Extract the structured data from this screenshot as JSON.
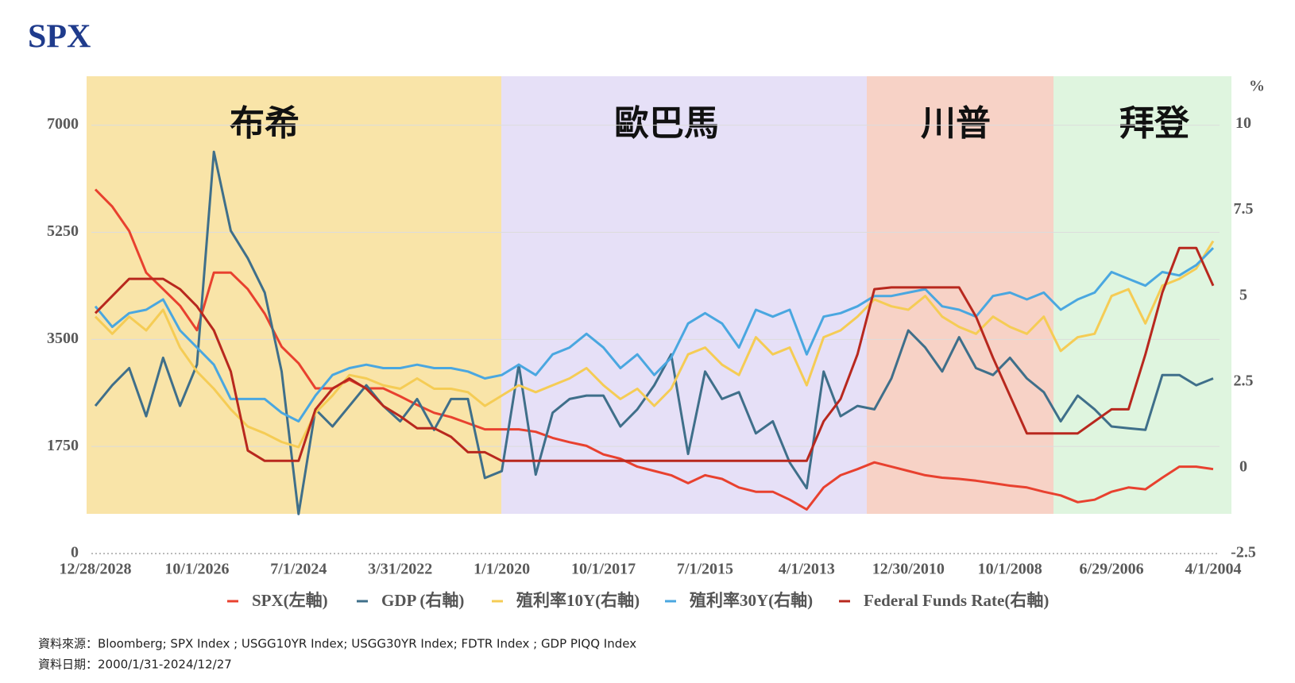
{
  "chart_data": {
    "type": "line",
    "logo": "SPX",
    "y2_label": "%",
    "periods": [
      {
        "label": "布希",
        "color": "#f9e4a8"
      },
      {
        "label": "歐巴馬",
        "color": "#e6e0f7"
      },
      {
        "label": "川普",
        "color": "#f7d2c6"
      },
      {
        "label": "拜登",
        "color": "#dff5df"
      }
    ],
    "categories": [
      "12/28/2028",
      null,
      null,
      null,
      null,
      null,
      "10/1/2026",
      null,
      null,
      null,
      null,
      null,
      "7/1/2024",
      null,
      null,
      null,
      null,
      null,
      "3/31/2022",
      null,
      null,
      null,
      null,
      null,
      "1/1/2020",
      null,
      null,
      null,
      null,
      null,
      "10/1/2017",
      null,
      null,
      null,
      null,
      null,
      "7/1/2015",
      null,
      null,
      null,
      null,
      null,
      "4/1/2013",
      null,
      null,
      null,
      null,
      null,
      "12/30/2010",
      null,
      null,
      null,
      null,
      null,
      "10/1/2008",
      null,
      null,
      null,
      null,
      null,
      "6/29/2006",
      null,
      null,
      null,
      null,
      null,
      "4/1/2004"
    ],
    "ylim": [
      0,
      7800
    ],
    "yticks": [
      0,
      1750,
      3500,
      5250,
      7000
    ],
    "y2lim": [
      -2.5,
      11.4
    ],
    "y2ticks": [
      -2.5,
      0,
      2.5,
      5,
      7.5,
      10
    ],
    "grid": true,
    "series": [
      {
        "name": "SPX(左軸)",
        "color": "#e8412f",
        "values": [
          5950,
          5670,
          5270,
          4590,
          4320,
          4050,
          3650,
          4590,
          4590,
          4320,
          3920,
          3380,
          3110,
          2700,
          2700,
          2840,
          2700,
          2700,
          2570,
          2430,
          2300,
          2230,
          2130,
          2030,
          2030,
          2030,
          1990,
          1890,
          1820,
          1760,
          1620,
          1550,
          1420,
          1350,
          1280,
          1150,
          1280,
          1220,
          1080,
          1010,
          1010,
          880,
          720,
          1080,
          1280,
          1380,
          1490,
          1420,
          1350,
          1280,
          1240,
          1220,
          1190,
          1150,
          1110,
          1080,
          1010,
          950,
          840,
          880,
          1010,
          1080,
          1050,
          1240,
          1420,
          1420,
          1380
        ]
      },
      {
        "name": "GDP (右軸)",
        "color": "#3f6f8a",
        "axis": "y2",
        "values": [
          1.8,
          2.4,
          2.9,
          1.5,
          3.2,
          1.8,
          3.0,
          9.2,
          6.9,
          6.1,
          5.1,
          2.8,
          -1.35,
          1.7,
          1.2,
          1.8,
          2.4,
          1.8,
          1.35,
          2.0,
          1.1,
          2.0,
          2.0,
          -0.3,
          -0.1,
          3.0,
          -0.2,
          1.6,
          2.0,
          2.1,
          2.1,
          1.2,
          1.7,
          2.4,
          3.3,
          0.4,
          2.8,
          2.0,
          2.2,
          1.0,
          1.35,
          0.15,
          -0.6,
          2.8,
          1.5,
          1.8,
          1.7,
          2.6,
          4.0,
          3.5,
          2.8,
          3.8,
          2.9,
          2.7,
          3.2,
          2.6,
          2.2,
          1.35,
          2.1,
          1.7,
          1.2,
          1.15,
          1.1,
          2.7,
          2.7,
          2.4,
          2.6
        ]
      },
      {
        "name": "殖利率10Y(右軸)",
        "color": "#f5cc55",
        "axis": "y2",
        "values": [
          4.4,
          3.9,
          4.4,
          4.0,
          4.6,
          3.5,
          2.8,
          2.3,
          1.7,
          1.2,
          1.0,
          0.75,
          0.6,
          1.6,
          2.1,
          2.7,
          2.6,
          2.4,
          2.3,
          2.6,
          2.3,
          2.3,
          2.2,
          1.8,
          2.1,
          2.4,
          2.2,
          2.4,
          2.6,
          2.9,
          2.4,
          2.0,
          2.3,
          1.8,
          2.3,
          3.3,
          3.5,
          3.0,
          2.7,
          3.8,
          3.3,
          3.5,
          2.4,
          3.8,
          4.0,
          4.4,
          4.9,
          4.7,
          4.6,
          5.0,
          4.4,
          4.1,
          3.9,
          4.4,
          4.1,
          3.9,
          4.4,
          3.4,
          3.8,
          3.9,
          5.0,
          5.2,
          4.2,
          5.3,
          5.5,
          5.8,
          6.6
        ]
      },
      {
        "name": "殖利率30Y(右軸)",
        "color": "#4aa7e0",
        "axis": "y2",
        "values": [
          4.7,
          4.1,
          4.5,
          4.6,
          4.9,
          4.0,
          3.5,
          3.0,
          2.0,
          2.0,
          2.0,
          1.6,
          1.35,
          2.1,
          2.7,
          2.9,
          3.0,
          2.9,
          2.9,
          3.0,
          2.9,
          2.9,
          2.8,
          2.6,
          2.7,
          3.0,
          2.7,
          3.3,
          3.5,
          3.9,
          3.5,
          2.9,
          3.3,
          2.7,
          3.2,
          4.2,
          4.5,
          4.2,
          3.5,
          4.6,
          4.4,
          4.6,
          3.3,
          4.4,
          4.5,
          4.7,
          5.0,
          5.0,
          5.1,
          5.2,
          4.7,
          4.6,
          4.4,
          5.0,
          5.1,
          4.9,
          5.1,
          4.6,
          4.9,
          5.1,
          5.7,
          5.5,
          5.3,
          5.7,
          5.6,
          5.9,
          6.4
        ]
      },
      {
        "name": "Federal Funds Rate(右軸)",
        "color": "#b8281e",
        "axis": "y2",
        "values": [
          4.5,
          5.0,
          5.5,
          5.5,
          5.5,
          5.2,
          4.7,
          4.0,
          2.8,
          0.5,
          0.2,
          0.2,
          0.2,
          1.7,
          2.3,
          2.6,
          2.3,
          1.8,
          1.5,
          1.15,
          1.15,
          0.9,
          0.45,
          0.45,
          0.2,
          0.2,
          0.2,
          0.2,
          0.2,
          0.2,
          0.2,
          0.2,
          0.2,
          0.2,
          0.2,
          0.2,
          0.2,
          0.2,
          0.2,
          0.2,
          0.2,
          0.2,
          0.2,
          1.35,
          2.0,
          3.3,
          5.2,
          5.25,
          5.25,
          5.25,
          5.25,
          5.25,
          4.4,
          3.2,
          2.1,
          1.0,
          1.0,
          1.0,
          1.0,
          1.35,
          1.7,
          1.7,
          3.3,
          5.1,
          6.4,
          6.4,
          5.3
        ]
      }
    ],
    "notes": [
      "資料來源：Bloomberg; SPX Index ; USGG10YR Index; USGG30YR Index; FDTR Index ; GDP PIQQ Index",
      "資料日期：2000/1/31-2024/12/27"
    ]
  }
}
